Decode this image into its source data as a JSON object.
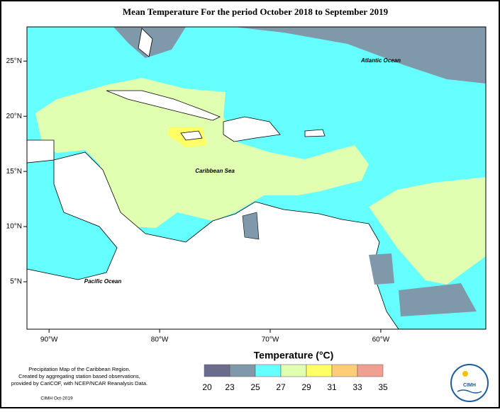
{
  "title": "Mean Temperature For the period October 2018 to September 2019",
  "map": {
    "xlim": [
      -92,
      -50.5
    ],
    "ylim": [
      0.7,
      28.1
    ],
    "xticks": [
      {
        "value": -90,
        "label": "90°W"
      },
      {
        "value": -80,
        "label": "80°W"
      },
      {
        "value": -70,
        "label": "70°W"
      },
      {
        "value": -60,
        "label": "60°W"
      }
    ],
    "yticks": [
      {
        "value": 5,
        "label": "5°N"
      },
      {
        "value": 10,
        "label": "10°N"
      },
      {
        "value": 15,
        "label": "15°N"
      },
      {
        "value": 20,
        "label": "20°N"
      },
      {
        "value": 25,
        "label": "25°N"
      }
    ],
    "labels": [
      "Atlantic Ocean",
      "Caribbean Sea",
      "Pacific Ocean"
    ]
  },
  "legend": {
    "title": "Temperature (°C)",
    "bins": [
      20,
      23,
      25,
      27,
      29,
      31,
      33,
      35
    ],
    "colors": [
      "#6b6b8c",
      "#7f99aa",
      "#66ffff",
      "#e0ffb0",
      "#ffff66",
      "#ffcc77",
      "#f0a090"
    ]
  },
  "footnote": [
    "Precipitation Map of the Caribbean Region.",
    "Created by aggregating station based observations,",
    "provided by CariCOF, with NCEP/NCAR Reanalysis Data."
  ],
  "credit": "CIMH Oct-2019",
  "logo": "CIMH"
}
